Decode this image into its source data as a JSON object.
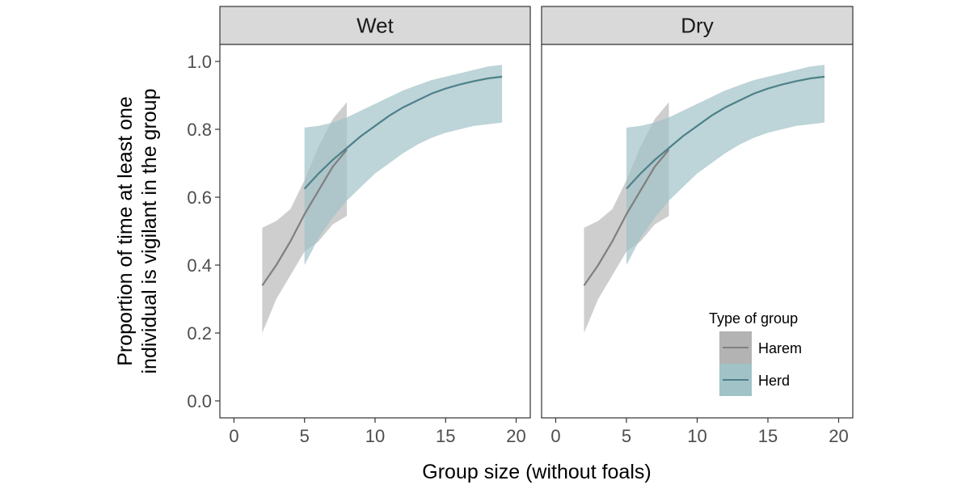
{
  "chart_data": {
    "type": "line",
    "xlabel": "Group size (without foals)",
    "ylabel_lines": [
      "Proportion of time at least one",
      "individual is vigilant in the group"
    ],
    "xlim": [
      -1,
      21
    ],
    "ylim": [
      -0.05,
      1.05
    ],
    "x_ticks": [
      0,
      5,
      10,
      15,
      20
    ],
    "x_tick_labels": [
      "0",
      "5",
      "10",
      "15",
      "20"
    ],
    "y_ticks": [
      0.0,
      0.2,
      0.4,
      0.6,
      0.8,
      1.0
    ],
    "y_tick_labels": [
      "0.0",
      "0.2",
      "0.4",
      "0.6",
      "0.8",
      "1.0"
    ],
    "grid": false,
    "legend": {
      "title": "Type of group",
      "placement": "bottom-right inside Dry panel",
      "entries": [
        "Harem",
        "Herd"
      ]
    },
    "colors": {
      "harem_line": "#7f7f7f",
      "harem_ribbon": "#b3b3b3",
      "herd_line": "#4d8189",
      "herd_ribbon": "#a1c2c7",
      "strip_fill": "#d9d9d9"
    },
    "panels": [
      {
        "label": "Wet",
        "series": [
          {
            "name": "Harem",
            "x": [
              2,
              3,
              4,
              5,
              6,
              7,
              8
            ],
            "y": [
              0.34,
              0.4,
              0.47,
              0.55,
              0.62,
              0.69,
              0.74
            ],
            "lower": [
              0.2,
              0.3,
              0.37,
              0.44,
              0.47,
              0.52,
              0.545
            ],
            "upper": [
              0.51,
              0.53,
              0.565,
              0.65,
              0.75,
              0.83,
              0.88
            ]
          },
          {
            "name": "Herd",
            "x": [
              5,
              6,
              7,
              8,
              9,
              10,
              11,
              12,
              13,
              14,
              15,
              16,
              17,
              18,
              19
            ],
            "y": [
              0.625,
              0.67,
              0.71,
              0.745,
              0.78,
              0.81,
              0.84,
              0.865,
              0.885,
              0.905,
              0.92,
              0.932,
              0.942,
              0.95,
              0.955
            ],
            "lower": [
              0.4,
              0.48,
              0.54,
              0.59,
              0.63,
              0.67,
              0.7,
              0.73,
              0.755,
              0.775,
              0.79,
              0.8,
              0.81,
              0.815,
              0.82
            ],
            "upper": [
              0.805,
              0.81,
              0.82,
              0.835,
              0.855,
              0.875,
              0.895,
              0.915,
              0.93,
              0.945,
              0.955,
              0.965,
              0.975,
              0.985,
              0.99
            ]
          }
        ]
      },
      {
        "label": "Dry",
        "series": [
          {
            "name": "Harem",
            "x": [
              2,
              3,
              4,
              5,
              6,
              7,
              8
            ],
            "y": [
              0.34,
              0.4,
              0.47,
              0.55,
              0.62,
              0.69,
              0.74
            ],
            "lower": [
              0.2,
              0.3,
              0.37,
              0.44,
              0.47,
              0.52,
              0.545
            ],
            "upper": [
              0.51,
              0.53,
              0.565,
              0.65,
              0.75,
              0.83,
              0.88
            ]
          },
          {
            "name": "Herd",
            "x": [
              5,
              6,
              7,
              8,
              9,
              10,
              11,
              12,
              13,
              14,
              15,
              16,
              17,
              18,
              19
            ],
            "y": [
              0.625,
              0.67,
              0.71,
              0.745,
              0.78,
              0.81,
              0.84,
              0.865,
              0.885,
              0.905,
              0.92,
              0.932,
              0.942,
              0.95,
              0.955
            ],
            "lower": [
              0.4,
              0.48,
              0.54,
              0.59,
              0.63,
              0.67,
              0.7,
              0.73,
              0.755,
              0.775,
              0.79,
              0.8,
              0.81,
              0.815,
              0.82
            ],
            "upper": [
              0.805,
              0.81,
              0.82,
              0.835,
              0.855,
              0.875,
              0.895,
              0.915,
              0.93,
              0.945,
              0.955,
              0.965,
              0.975,
              0.985,
              0.99
            ]
          }
        ]
      }
    ]
  }
}
